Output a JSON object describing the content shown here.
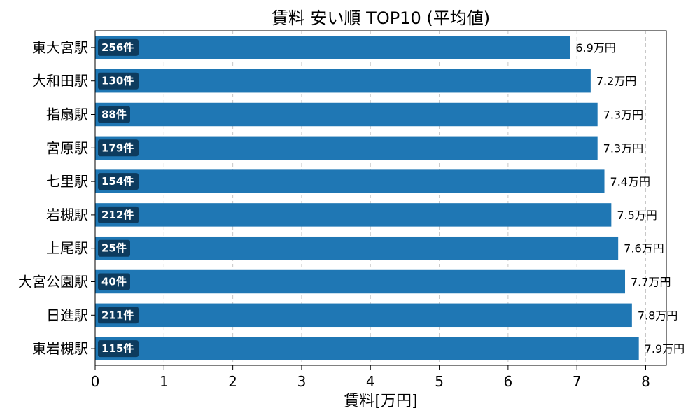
{
  "chart_data": {
    "type": "bar",
    "orientation": "horizontal",
    "title": "賃料 安い順 TOP10 (平均値)",
    "xlabel": "賃料[万円]",
    "ylabel": "",
    "xlim": [
      0,
      8.3
    ],
    "xticks": [
      0,
      1,
      2,
      3,
      4,
      5,
      6,
      7,
      8
    ],
    "grid": "x-dashed",
    "bar_color": "#1f77b4",
    "count_badge_color": "#0d3b5e",
    "categories": [
      "東大宮駅",
      "大和田駅",
      "指扇駅",
      "宮原駅",
      "七里駅",
      "岩槻駅",
      "上尾駅",
      "大宮公園駅",
      "日進駅",
      "東岩槻駅"
    ],
    "values": [
      6.9,
      7.2,
      7.3,
      7.3,
      7.4,
      7.5,
      7.6,
      7.7,
      7.8,
      7.9
    ],
    "value_labels": [
      "6.9万円",
      "7.2万円",
      "7.3万円",
      "7.3万円",
      "7.4万円",
      "7.5万円",
      "7.6万円",
      "7.7万円",
      "7.8万円",
      "7.9万円"
    ],
    "count_labels": [
      "256件",
      "130件",
      "88件",
      "179件",
      "154件",
      "212件",
      "25件",
      "40件",
      "211件",
      "115件"
    ]
  }
}
